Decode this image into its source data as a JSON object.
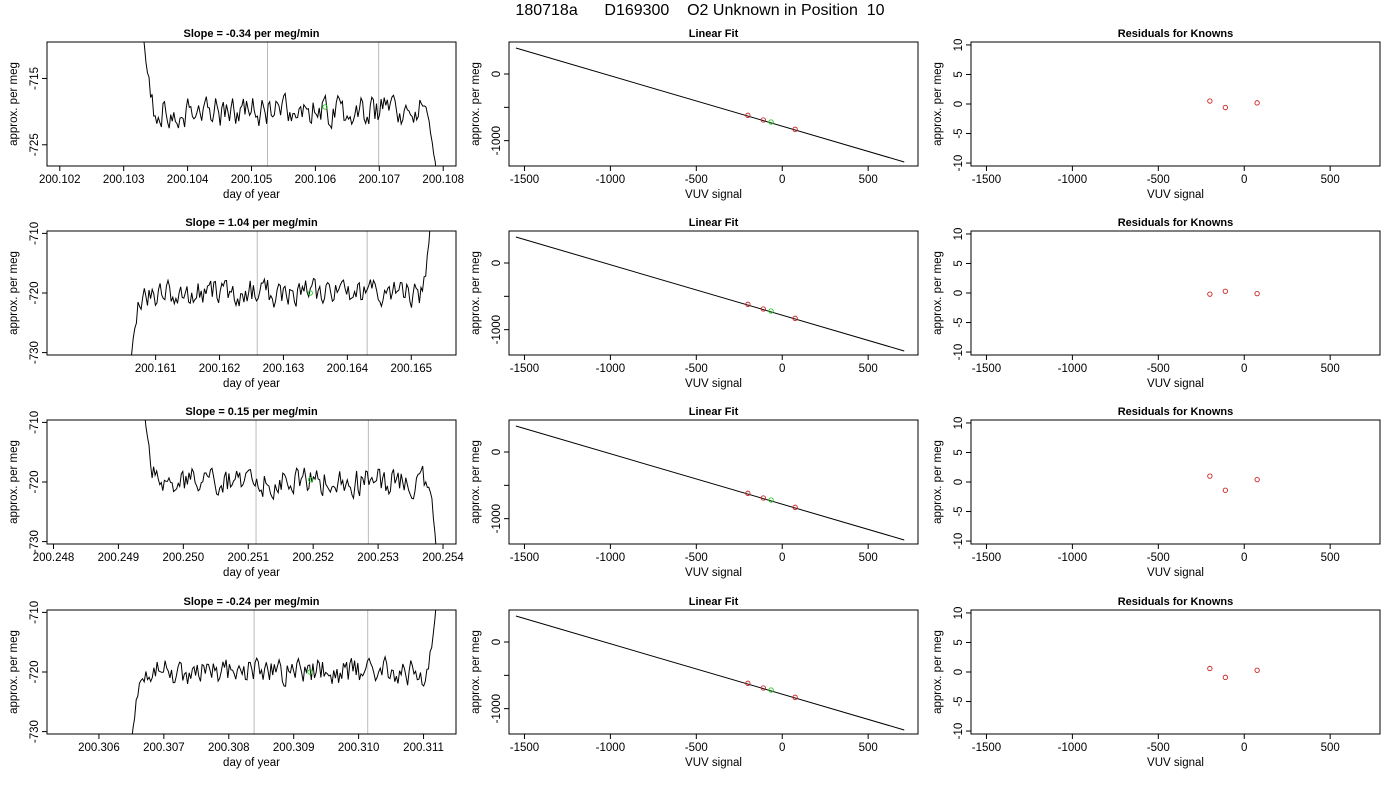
{
  "figure": {
    "title": "180718a      D169300    O2 Unknown in Position  10"
  },
  "colors": {
    "trace": "#000000",
    "point_green": "#22cc22",
    "point_red": "#cc2222",
    "vline": "#bbbbbb",
    "frame": "#000000"
  },
  "chart_data": [
    {
      "type": "line",
      "row": 1,
      "col": 1,
      "title": "Slope =  -0.34  per meg/min",
      "xlabel": "day of year",
      "ylabel": "approx. per meg",
      "xlim": [
        200.1018,
        200.1082
      ],
      "ylim": [
        -728.2,
        -709.5
      ],
      "xticks": [
        200.102,
        200.103,
        200.104,
        200.105,
        200.106,
        200.107,
        200.108
      ],
      "xtick_labels": [
        "200.102",
        "200.103",
        "200.104",
        "200.105",
        "200.106",
        "200.107",
        "200.108"
      ],
      "yticks": [
        -725,
        -715
      ],
      "ytick_labels": [
        "-725",
        "-715"
      ],
      "vlines": [
        200.10525,
        200.10699
      ],
      "trace": {
        "x_start": 200.1033,
        "x_end": 200.1079,
        "baseline": -720,
        "start_value": -708,
        "end_value": -731,
        "seed": 3,
        "noise": 2.6
      },
      "marker": {
        "x": 200.10615,
        "y": -719.3
      }
    },
    {
      "type": "line",
      "row": 2,
      "col": 1,
      "title": "Slope =  1.04  per meg/min",
      "xlabel": "day of year",
      "ylabel": "approx. per meg",
      "xlim": [
        200.1593,
        200.1657
      ],
      "ylim": [
        -730.4,
        -709.6
      ],
      "xticks": [
        200.161,
        200.162,
        200.163,
        200.164,
        200.165
      ],
      "xtick_labels": [
        "200.161",
        "200.162",
        "200.163",
        "200.164",
        "200.165"
      ],
      "yticks": [
        -730,
        -720,
        -710
      ],
      "ytick_labels": [
        "-730",
        "-720",
        "-710"
      ],
      "vlines": [
        200.16259,
        200.16431
      ],
      "trace": {
        "x_start": 200.1606,
        "x_end": 200.1653,
        "baseline": -720,
        "start_value": -732,
        "end_value": -708,
        "seed": 7,
        "noise": 2.6
      },
      "marker": {
        "x": 200.16342,
        "y": -720
      }
    },
    {
      "type": "line",
      "row": 3,
      "col": 1,
      "title": "Slope =  0.15  per meg/min",
      "xlabel": "day of year",
      "ylabel": "approx. per meg",
      "xlim": [
        200.2479,
        200.2542
      ],
      "ylim": [
        -730.4,
        -709.6
      ],
      "xticks": [
        200.248,
        200.249,
        200.25,
        200.251,
        200.252,
        200.253,
        200.254
      ],
      "xtick_labels": [
        "200.248",
        "200.249",
        "200.250",
        "200.251",
        "200.252",
        "200.253",
        "200.254"
      ],
      "yticks": [
        -730,
        -720,
        -710
      ],
      "ytick_labels": [
        "-730",
        "-720",
        "-710"
      ],
      "vlines": [
        200.25112,
        200.25285
      ],
      "trace": {
        "x_start": 200.2494,
        "x_end": 200.2539,
        "baseline": -720,
        "start_value": -708,
        "end_value": -732,
        "seed": 11,
        "noise": 2.6
      },
      "marker": {
        "x": 200.25196,
        "y": -719.6
      }
    },
    {
      "type": "line",
      "row": 4,
      "col": 1,
      "title": "Slope =  -0.24  per meg/min",
      "xlabel": "day of year",
      "ylabel": "approx. per meg",
      "xlim": [
        200.3052,
        200.3115
      ],
      "ylim": [
        -730.4,
        -709.6
      ],
      "xticks": [
        200.306,
        200.307,
        200.308,
        200.309,
        200.31,
        200.311
      ],
      "xtick_labels": [
        "200.306",
        "200.307",
        "200.308",
        "200.309",
        "200.310",
        "200.311"
      ],
      "yticks": [
        -730,
        -720,
        -710
      ],
      "ytick_labels": [
        "-730",
        "-720",
        "-710"
      ],
      "vlines": [
        200.30839,
        200.31014
      ],
      "trace": {
        "x_start": 200.3065,
        "x_end": 200.3112,
        "baseline": -720,
        "start_value": -732,
        "end_value": -708,
        "seed": 19,
        "noise": 2.6
      },
      "marker": {
        "x": 200.30925,
        "y": -720
      }
    },
    {
      "type": "scatter",
      "row": 1,
      "col": 2,
      "title": "Linear Fit",
      "xlabel": "VUV signal",
      "ylabel": "approx. per meg",
      "xlim": [
        -1590,
        790
      ],
      "ylim": [
        -1380,
        480
      ],
      "xticks": [
        -1500,
        -1000,
        -500,
        0,
        500
      ],
      "xtick_labels": [
        "-1500",
        "-1000",
        "-500",
        "0",
        "500"
      ],
      "yticks": [
        -1000,
        -500,
        0
      ],
      "ytick_labels": [
        "-1000",
        "",
        "0"
      ],
      "fit_line": [
        [
          -1550,
          390
        ],
        [
          710,
          -1320
        ]
      ],
      "knowns": [
        [
          -200,
          -620
        ],
        [
          -110,
          -690
        ],
        [
          75,
          -830
        ]
      ],
      "unknown": [
        [
          -65,
          -720
        ]
      ]
    },
    {
      "type": "scatter",
      "row": 2,
      "col": 2,
      "title": "Linear Fit",
      "xlabel": "VUV signal",
      "ylabel": "approx. per meg",
      "xlim": [
        -1590,
        790
      ],
      "ylim": [
        -1380,
        480
      ],
      "xticks": [
        -1500,
        -1000,
        -500,
        0,
        500
      ],
      "xtick_labels": [
        "-1500",
        "-1000",
        "-500",
        "0",
        "500"
      ],
      "yticks": [
        -1000,
        -500,
        0
      ],
      "ytick_labels": [
        "-1000",
        "",
        "0"
      ],
      "fit_line": [
        [
          -1550,
          390
        ],
        [
          710,
          -1320
        ]
      ],
      "knowns": [
        [
          -200,
          -620
        ],
        [
          -110,
          -690
        ],
        [
          75,
          -830
        ]
      ],
      "unknown": [
        [
          -65,
          -720
        ]
      ]
    },
    {
      "type": "scatter",
      "row": 3,
      "col": 2,
      "title": "Linear Fit",
      "xlabel": "VUV signal",
      "ylabel": "approx. per meg",
      "xlim": [
        -1590,
        790
      ],
      "ylim": [
        -1380,
        480
      ],
      "xticks": [
        -1500,
        -1000,
        -500,
        0,
        500
      ],
      "xtick_labels": [
        "-1500",
        "-1000",
        "-500",
        "0",
        "500"
      ],
      "yticks": [
        -1000,
        -500,
        0
      ],
      "ytick_labels": [
        "-1000",
        "",
        "0"
      ],
      "fit_line": [
        [
          -1550,
          390
        ],
        [
          710,
          -1320
        ]
      ],
      "knowns": [
        [
          -200,
          -620
        ],
        [
          -110,
          -690
        ],
        [
          75,
          -830
        ]
      ],
      "unknown": [
        [
          -65,
          -720
        ]
      ]
    },
    {
      "type": "scatter",
      "row": 4,
      "col": 2,
      "title": "Linear Fit",
      "xlabel": "VUV signal",
      "ylabel": "approx. per meg",
      "xlim": [
        -1590,
        790
      ],
      "ylim": [
        -1380,
        480
      ],
      "xticks": [
        -1500,
        -1000,
        -500,
        0,
        500
      ],
      "xtick_labels": [
        "-1500",
        "-1000",
        "-500",
        "0",
        "500"
      ],
      "yticks": [
        -1000,
        -500,
        0
      ],
      "ytick_labels": [
        "-1000",
        "",
        "0"
      ],
      "fit_line": [
        [
          -1550,
          390
        ],
        [
          710,
          -1320
        ]
      ],
      "knowns": [
        [
          -200,
          -620
        ],
        [
          -110,
          -690
        ],
        [
          75,
          -830
        ]
      ],
      "unknown": [
        [
          -65,
          -720
        ]
      ]
    },
    {
      "type": "scatter",
      "row": 1,
      "col": 3,
      "title": "Residuals for Knowns",
      "xlabel": "VUV signal",
      "ylabel": "approx. per meg",
      "xlim": [
        -1590,
        790
      ],
      "ylim": [
        -10.5,
        10.5
      ],
      "xticks": [
        -1500,
        -1000,
        -500,
        0,
        500
      ],
      "xtick_labels": [
        "-1500",
        "-1000",
        "-500",
        "0",
        "500"
      ],
      "yticks": [
        -10,
        -5,
        0,
        5,
        10
      ],
      "ytick_labels": [
        "-10",
        "-5",
        "0",
        "5",
        "10"
      ],
      "knowns": [
        [
          -200,
          0.5
        ],
        [
          -110,
          -0.6
        ],
        [
          75,
          0.2
        ]
      ]
    },
    {
      "type": "scatter",
      "row": 2,
      "col": 3,
      "title": "Residuals for Knowns",
      "xlabel": "VUV signal",
      "ylabel": "approx. per meg",
      "xlim": [
        -1590,
        790
      ],
      "ylim": [
        -10.5,
        10.5
      ],
      "xticks": [
        -1500,
        -1000,
        -500,
        0,
        500
      ],
      "xtick_labels": [
        "-1500",
        "-1000",
        "-500",
        "0",
        "500"
      ],
      "yticks": [
        -10,
        -5,
        0,
        5,
        10
      ],
      "ytick_labels": [
        "-10",
        "-5",
        "0",
        "5",
        "10"
      ],
      "knowns": [
        [
          -200,
          -0.2
        ],
        [
          -110,
          0.3
        ],
        [
          75,
          -0.1
        ]
      ]
    },
    {
      "type": "scatter",
      "row": 3,
      "col": 3,
      "title": "Residuals for Knowns",
      "xlabel": "VUV signal",
      "ylabel": "approx. per meg",
      "xlim": [
        -1590,
        790
      ],
      "ylim": [
        -10.5,
        10.5
      ],
      "xticks": [
        -1500,
        -1000,
        -500,
        0,
        500
      ],
      "xtick_labels": [
        "-1500",
        "-1000",
        "-500",
        "0",
        "500"
      ],
      "yticks": [
        -10,
        -5,
        0,
        5,
        10
      ],
      "ytick_labels": [
        "-10",
        "-5",
        "0",
        "5",
        "10"
      ],
      "knowns": [
        [
          -200,
          1.0
        ],
        [
          -110,
          -1.4
        ],
        [
          75,
          0.4
        ]
      ]
    },
    {
      "type": "scatter",
      "row": 4,
      "col": 3,
      "title": "Residuals for Knowns",
      "xlabel": "VUV signal",
      "ylabel": "approx. per meg",
      "xlim": [
        -1590,
        790
      ],
      "ylim": [
        -10.5,
        10.5
      ],
      "xticks": [
        -1500,
        -1000,
        -500,
        0,
        500
      ],
      "xtick_labels": [
        "-1500",
        "-1000",
        "-500",
        "0",
        "500"
      ],
      "yticks": [
        -10,
        -5,
        0,
        5,
        10
      ],
      "ytick_labels": [
        "-10",
        "-5",
        "0",
        "5",
        "10"
      ],
      "knowns": [
        [
          -200,
          0.6
        ],
        [
          -110,
          -0.9
        ],
        [
          75,
          0.3
        ]
      ]
    }
  ]
}
